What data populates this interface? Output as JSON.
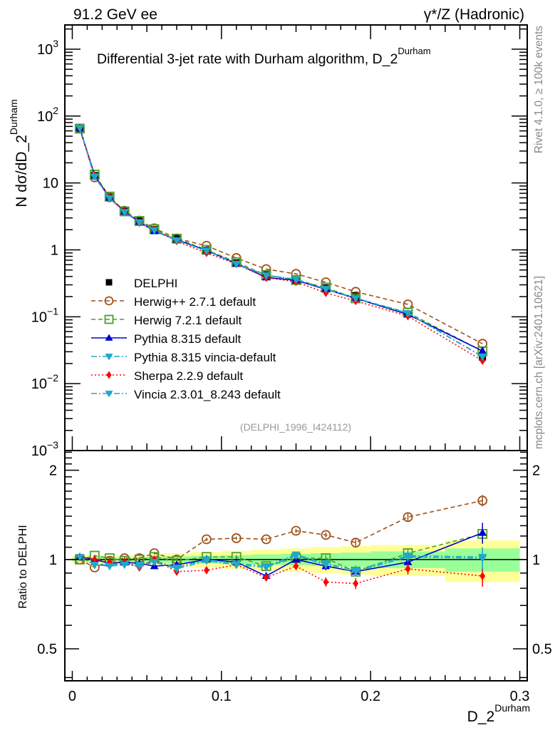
{
  "header": {
    "left": "91.2 GeV ee",
    "right": "γ*/Z (Hadronic)"
  },
  "side_text": {
    "top": "Rivet 4.1.0, ≥ 100k events",
    "bottom": "mcplots.cern.ch [arXiv:2401.10621]"
  },
  "colors": {
    "data": "#000000",
    "herwigpp": "#a0521c",
    "herwig7": "#4aa02c",
    "pythia": "#0000d0",
    "pythia_vincia": "#1fa8c8",
    "sherpa": "#ff0000",
    "vincia": "#1fa8c8",
    "band_inner": "#99ff99",
    "band_outer": "#ffff99"
  },
  "chart_data": [
    {
      "type": "line",
      "scale": "log",
      "title": "Differential 3-jet rate with Durham algorithm, D_2",
      "title_sup": "Durham",
      "xlabel": "D_2",
      "xlabel_sup": "Durham",
      "ylabel": "N  dσ/dD_2",
      "ylabel_sup": "Durham",
      "xlim": [
        -0.005,
        0.305
      ],
      "ylim": [
        0.001,
        2300
      ],
      "yticks": [
        {
          "value": 1000,
          "label": "10",
          "sup": "3"
        },
        {
          "value": 100,
          "label": "10",
          "sup": "2"
        },
        {
          "value": 10,
          "label": "10",
          "sup": ""
        },
        {
          "value": 1,
          "label": "1",
          "sup": ""
        },
        {
          "value": 0.1,
          "label": "10",
          "sup": "−1"
        },
        {
          "value": 0.01,
          "label": "10",
          "sup": "−2"
        },
        {
          "value": 0.001,
          "label": "10",
          "sup": "−3"
        }
      ],
      "reference_tag": "(DELPHI_1996_I424112)",
      "legend_position": "center-left",
      "x": [
        0.005,
        0.015,
        0.025,
        0.035,
        0.045,
        0.055,
        0.07,
        0.09,
        0.11,
        0.13,
        0.15,
        0.17,
        0.19,
        0.225,
        0.275
      ],
      "data": {
        "name": "DELPHI",
        "values": [
          65,
          12.9,
          6.2,
          3.8,
          2.7,
          2.0,
          1.48,
          0.98,
          0.64,
          0.44,
          0.35,
          0.27,
          0.207,
          0.11,
          0.025
        ]
      },
      "series": [
        {
          "name": "Herwig++ 2.7.1 default",
          "key": "herwigpp",
          "marker": "open-circle",
          "dash": "dashed",
          "values": [
            65,
            12.1,
            6.1,
            3.84,
            2.73,
            2.1,
            1.48,
            1.15,
            0.755,
            0.515,
            0.437,
            0.327,
            0.236,
            0.153,
            0.0395
          ]
        },
        {
          "name": "Herwig 7.2.1 default",
          "key": "herwig7",
          "marker": "open-square",
          "dash": "dashed",
          "values": [
            65,
            13.3,
            6.26,
            3.76,
            2.7,
            2.04,
            1.47,
            1.0,
            0.653,
            0.418,
            0.354,
            0.273,
            0.188,
            0.1155,
            0.0305
          ]
        },
        {
          "name": "Pythia 8.315 default",
          "key": "pythia",
          "marker": "filled-triangle-up",
          "dash": "solid",
          "values": [
            66.3,
            12.9,
            6.01,
            3.72,
            2.62,
            1.9,
            1.42,
            0.98,
            0.627,
            0.387,
            0.35,
            0.257,
            0.188,
            0.108,
            0.0308
          ]
        },
        {
          "name": "Pythia 8.315 vincia-default",
          "key": "pythia_vincia",
          "marker": "filled-triangle-down",
          "dash": "dashdot",
          "values": [
            66.3,
            12.4,
            5.95,
            3.69,
            2.59,
            1.98,
            1.39,
            0.98,
            0.621,
            0.418,
            0.364,
            0.262,
            0.19,
            0.113,
            0.0255
          ]
        },
        {
          "name": "Sherpa 2.2.9 default",
          "key": "sherpa",
          "marker": "filled-diamond",
          "dash": "dotted",
          "values": [
            66.3,
            12.9,
            6.08,
            3.72,
            2.54,
            2.0,
            1.35,
            0.9,
            0.614,
            0.383,
            0.333,
            0.227,
            0.172,
            0.102,
            0.022
          ]
        },
        {
          "name": "Vincia 2.3.01_8.243 default",
          "key": "vincia",
          "marker": "filled-triangle-down",
          "dash": "dashdot",
          "values": [
            66.3,
            12.4,
            5.89,
            3.65,
            2.57,
            1.96,
            1.38,
            0.97,
            0.614,
            0.414,
            0.36,
            0.259,
            0.188,
            0.112,
            0.0253
          ]
        }
      ]
    },
    {
      "type": "line",
      "scale": "log",
      "ylabel": "Ratio to DELPHI",
      "xlabel": "D_2",
      "xlabel_sup": "Durham",
      "xlim": [
        -0.005,
        0.305
      ],
      "ylim": [
        0.39,
        2.33
      ],
      "xticks": [
        0,
        0.1,
        0.2,
        0.3
      ],
      "xtick_labels": [
        "0",
        "0.1",
        "0.2",
        "0.3"
      ],
      "yticks": [
        2,
        1,
        0.5
      ],
      "ytick_labels": [
        "2",
        "1",
        "0.5"
      ],
      "bins": [
        0,
        0.01,
        0.02,
        0.03,
        0.04,
        0.05,
        0.06,
        0.08,
        0.1,
        0.12,
        0.14,
        0.16,
        0.18,
        0.2,
        0.25,
        0.3
      ],
      "x": [
        0.005,
        0.015,
        0.025,
        0.035,
        0.045,
        0.055,
        0.07,
        0.09,
        0.11,
        0.13,
        0.15,
        0.17,
        0.19,
        0.225,
        0.275
      ],
      "band_inner": [
        0.015,
        0.015,
        0.015,
        0.015,
        0.015,
        0.02,
        0.025,
        0.03,
        0.035,
        0.04,
        0.045,
        0.05,
        0.055,
        0.065,
        0.09
      ],
      "band_outer": [
        0.03,
        0.03,
        0.03,
        0.03,
        0.03,
        0.04,
        0.05,
        0.06,
        0.07,
        0.08,
        0.09,
        0.1,
        0.11,
        0.12,
        0.16
      ],
      "series": [
        {
          "name": "Herwig++ 2.7.1 default",
          "key": "herwigpp",
          "values": [
            1.0,
            0.94,
            0.99,
            1.01,
            1.01,
            1.05,
            1.0,
            1.17,
            1.18,
            1.17,
            1.25,
            1.21,
            1.14,
            1.39,
            1.58
          ],
          "errors": [
            0.01,
            0.01,
            0.01,
            0.01,
            0.01,
            0.01,
            0.01,
            0.015,
            0.015,
            0.015,
            0.02,
            0.025,
            0.03,
            0.04,
            0.07
          ]
        },
        {
          "name": "Herwig 7.2.1 default",
          "key": "herwig7",
          "values": [
            1.0,
            1.03,
            1.01,
            0.99,
            1.0,
            1.02,
            0.99,
            1.02,
            1.02,
            0.95,
            1.01,
            1.01,
            0.91,
            1.05,
            1.22
          ],
          "errors": [
            0.01,
            0.01,
            0.01,
            0.01,
            0.01,
            0.01,
            0.01,
            0.015,
            0.015,
            0.015,
            0.02,
            0.025,
            0.03,
            0.04,
            0.07
          ]
        },
        {
          "name": "Pythia 8.315 default",
          "key": "pythia",
          "values": [
            1.02,
            1.0,
            0.97,
            0.98,
            0.97,
            0.95,
            0.96,
            1.0,
            0.98,
            0.88,
            1.0,
            0.95,
            0.91,
            0.98,
            1.23
          ],
          "errors": [
            0.01,
            0.01,
            0.01,
            0.01,
            0.01,
            0.01,
            0.01,
            0.015,
            0.015,
            0.015,
            0.02,
            0.03,
            0.035,
            0.04,
            0.1
          ]
        },
        {
          "name": "Pythia 8.315 vincia-default",
          "key": "pythia_vincia",
          "values": [
            1.02,
            0.96,
            0.96,
            0.97,
            0.96,
            0.99,
            0.94,
            1.0,
            0.97,
            0.95,
            1.04,
            0.97,
            0.92,
            1.03,
            1.02
          ],
          "errors": [
            0.01,
            0.01,
            0.01,
            0.01,
            0.01,
            0.01,
            0.01,
            0.015,
            0.015,
            0.015,
            0.02,
            0.03,
            0.035,
            0.04,
            0.08
          ]
        },
        {
          "name": "Sherpa 2.2.9 default",
          "key": "sherpa",
          "values": [
            1.02,
            1.0,
            0.98,
            0.98,
            0.94,
            1.0,
            0.91,
            0.92,
            0.96,
            0.87,
            0.95,
            0.84,
            0.83,
            0.93,
            0.88
          ],
          "errors": [
            0.01,
            0.01,
            0.01,
            0.01,
            0.01,
            0.01,
            0.01,
            0.015,
            0.015,
            0.015,
            0.02,
            0.03,
            0.035,
            0.04,
            0.07
          ]
        },
        {
          "name": "Vincia 2.3.01_8.243 default",
          "key": "vincia",
          "values": [
            1.02,
            0.96,
            0.95,
            0.96,
            0.95,
            0.98,
            0.93,
            0.99,
            0.96,
            0.94,
            1.03,
            0.96,
            0.91,
            1.02,
            1.01
          ],
          "errors": [
            0.01,
            0.01,
            0.01,
            0.01,
            0.01,
            0.01,
            0.01,
            0.015,
            0.015,
            0.015,
            0.02,
            0.03,
            0.035,
            0.04,
            0.08
          ]
        }
      ]
    }
  ]
}
